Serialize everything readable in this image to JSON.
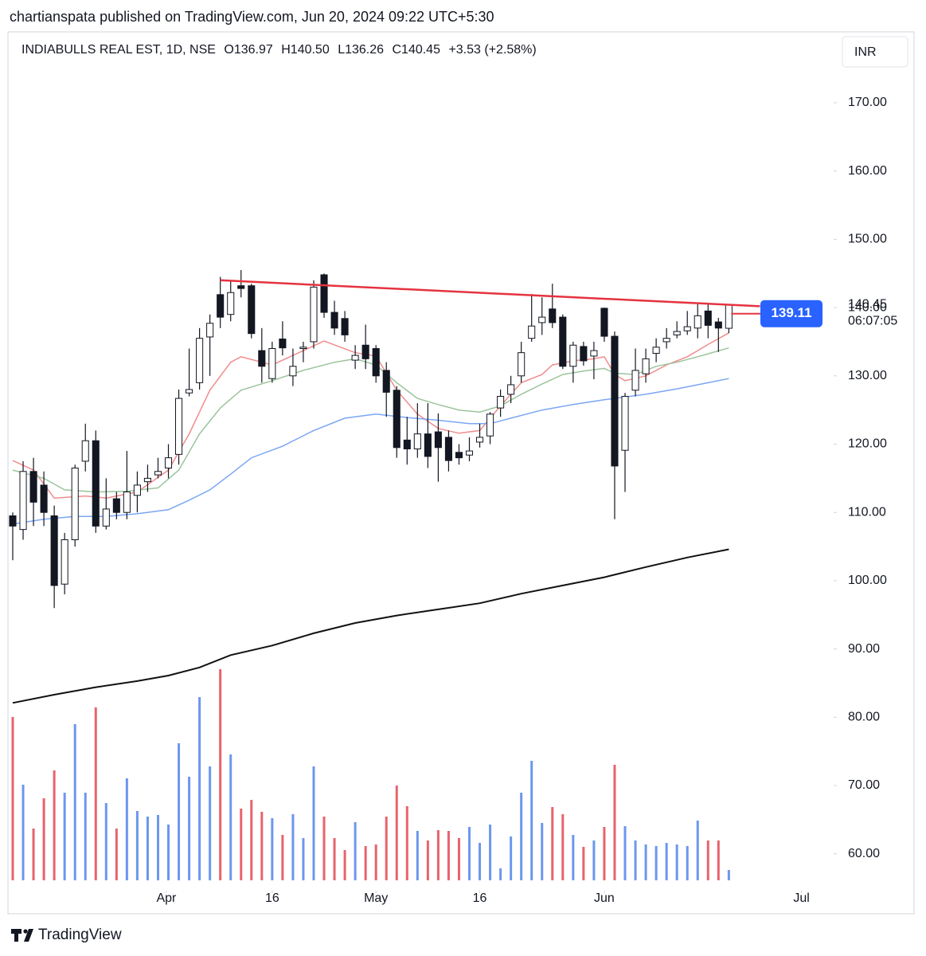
{
  "chart_data": {
    "type": "candlestick",
    "title": "chartianspata published on TradingView.com, Jun 20, 2024 09:22 UTC+5:30",
    "symbol": "INDIABULLS REAL EST, 1D, NSE",
    "ohlc_text": [
      "O136.97",
      "H140.50",
      "L136.26",
      "C140.45",
      "+3.53 (+2.58%)"
    ],
    "currency": "INR",
    "footer": "TradingView",
    "up_color": "#ffffff",
    "down_color": "#131722",
    "wick_color": "#131722",
    "ohlc": [
      [
        109.5,
        110,
        103,
        108
      ],
      [
        107.5,
        117.5,
        106,
        116
      ],
      [
        116,
        118,
        108,
        111.5
      ],
      [
        114,
        116,
        108,
        110
      ],
      [
        109.5,
        111,
        96,
        99.3
      ],
      [
        99.5,
        107,
        98,
        106
      ],
      [
        106,
        117,
        105,
        116.5
      ],
      [
        117.5,
        123,
        116,
        120.5
      ],
      [
        120.5,
        122,
        107,
        108
      ],
      [
        108,
        115,
        107.5,
        110.5
      ],
      [
        112,
        113,
        109,
        110
      ],
      [
        110,
        119,
        109,
        113
      ],
      [
        112.5,
        116,
        110,
        114
      ],
      [
        114.5,
        117,
        113,
        115
      ],
      [
        115.5,
        118,
        115,
        116
      ],
      [
        116.5,
        120,
        115,
        118
      ],
      [
        118.5,
        128,
        117,
        126.7
      ],
      [
        127.5,
        134,
        127,
        128
      ],
      [
        129,
        137,
        128,
        135.5
      ],
      [
        135.7,
        139,
        130,
        137.7
      ],
      [
        141.9,
        144.5,
        137,
        138.6
      ],
      [
        139,
        144,
        138,
        142.2
      ],
      [
        143.2,
        145.5,
        141.5,
        142.8
      ],
      [
        143.2,
        143.5,
        135.5,
        136.2
      ],
      [
        133.7,
        137,
        129,
        131.4
      ],
      [
        129.6,
        135,
        129,
        134
      ],
      [
        135.4,
        138,
        133,
        134.1
      ],
      [
        130,
        134,
        128.5,
        131.4
      ],
      [
        134,
        135,
        132,
        134.2
      ],
      [
        135,
        144,
        134,
        143
      ],
      [
        144.8,
        145,
        138.5,
        139.3
      ],
      [
        139.3,
        141,
        136,
        137
      ],
      [
        138.4,
        139.5,
        135,
        136
      ],
      [
        132.3,
        134.5,
        131,
        133
      ],
      [
        134.5,
        137.5,
        131,
        132.5
      ],
      [
        134,
        134.5,
        129,
        130
      ],
      [
        130.8,
        132,
        124,
        127.6
      ],
      [
        127.9,
        128.5,
        118,
        119.5
      ],
      [
        120.6,
        124,
        117,
        119.3
      ],
      [
        119.3,
        126,
        118,
        121.5
      ],
      [
        121.5,
        126,
        116.5,
        118.2
      ],
      [
        121.8,
        124.5,
        114.5,
        119.5
      ],
      [
        121,
        122,
        116,
        117.6
      ],
      [
        118.8,
        120,
        117,
        118
      ],
      [
        118.4,
        121,
        117.5,
        119
      ],
      [
        120.3,
        123,
        119.5,
        121
      ],
      [
        121.2,
        124.7,
        120,
        124.4
      ],
      [
        125.3,
        128,
        124,
        127
      ],
      [
        127.3,
        130,
        126,
        128.7
      ],
      [
        130,
        135,
        129,
        133.4
      ],
      [
        135.5,
        142,
        135,
        137.3
      ],
      [
        137.8,
        141.5,
        136,
        138.6
      ],
      [
        139.8,
        143.5,
        137,
        137.8
      ],
      [
        138.6,
        139,
        131,
        131.4
      ],
      [
        131.4,
        135,
        129,
        134.5
      ],
      [
        134.3,
        135,
        131.5,
        132.2
      ],
      [
        132.9,
        135,
        129.5,
        133.7
      ],
      [
        139.9,
        140,
        135,
        135.8
      ],
      [
        135.8,
        136.5,
        109,
        116.8
      ],
      [
        119.1,
        127.5,
        113,
        127
      ],
      [
        127.9,
        134,
        127,
        130.8
      ],
      [
        130.3,
        134,
        129,
        132.5
      ],
      [
        133.3,
        135.5,
        132,
        134.2
      ],
      [
        135,
        137,
        134,
        135.5
      ],
      [
        136,
        138,
        135.5,
        136.5
      ],
      [
        136.6,
        139.5,
        136,
        137.2
      ],
      [
        137,
        140.5,
        135.5,
        138.8
      ],
      [
        139.5,
        140.5,
        135.5,
        137.4
      ],
      [
        137.9,
        138.5,
        133.5,
        137
      ],
      [
        136.97,
        140.5,
        136.26,
        140.45
      ]
    ],
    "volume": [
      205,
      120,
      65,
      103,
      138,
      110,
      196,
      110,
      217,
      97,
      65,
      128,
      87,
      80,
      82,
      70,
      172,
      130,
      230,
      143,
      265,
      158,
      90,
      101,
      86,
      78,
      57,
      83,
      53,
      143,
      80,
      53,
      38,
      73,
      43,
      45,
      80,
      119,
      93,
      62,
      50,
      63,
      62,
      53,
      67,
      47,
      70,
      15,
      55,
      110,
      150,
      72,
      92,
      83,
      57,
      42,
      50,
      67,
      145,
      68,
      50,
      45,
      43,
      47,
      45,
      43,
      75,
      50,
      50,
      13
    ],
    "volume_up_color": "#6c97ee",
    "volume_down_color": "#e8636c",
    "lines": [
      {
        "color": "#f08c8c",
        "x": [
          0,
          2,
          4,
          7,
          9,
          12,
          15,
          17,
          19,
          21,
          22,
          25,
          28,
          30,
          33,
          35,
          37,
          39,
          41,
          43,
          45,
          47,
          49,
          51,
          52,
          54,
          56,
          57,
          58,
          59,
          61,
          63,
          65,
          67,
          69
        ],
        "values": [
          117.6,
          116.2,
          112.1,
          112.4,
          112.1,
          113,
          116.2,
          121.5,
          127.9,
          132,
          132.8,
          131.6,
          133.7,
          135.1,
          133.4,
          132.9,
          127.9,
          124.4,
          122.3,
          121.6,
          122,
          125.6,
          129,
          130.2,
          131.6,
          132.2,
          132.5,
          132.8,
          130.2,
          129.3,
          130,
          131.6,
          132.8,
          134.6,
          136.3
        ]
      },
      {
        "color": "#9cc49c",
        "x": [
          0,
          3,
          5,
          8,
          11,
          14,
          16,
          18,
          20,
          22,
          25,
          28,
          31,
          33,
          35,
          37,
          39,
          41,
          43,
          45,
          47,
          49,
          51,
          53,
          55,
          57,
          58,
          60,
          62,
          64,
          66,
          69
        ],
        "values": [
          116.2,
          115,
          113.3,
          113,
          113.1,
          113.6,
          116.2,
          121.5,
          125.3,
          127.9,
          129.3,
          130.8,
          132,
          132.5,
          131.6,
          129,
          126.7,
          125.8,
          125,
          124.7,
          125.6,
          127.3,
          128.8,
          130.2,
          130.7,
          131.1,
          130.4,
          130.2,
          131.4,
          132,
          132.8,
          134.1
        ]
      },
      {
        "color": "#7ba6f4",
        "x": [
          0,
          3,
          6,
          9,
          12,
          15,
          17,
          19,
          21,
          23,
          26,
          29,
          32,
          35,
          38,
          41,
          44,
          46,
          48,
          51,
          54,
          57,
          59,
          61,
          64,
          67,
          69
        ],
        "values": [
          108.3,
          109,
          109.4,
          109.4,
          109.8,
          110.4,
          111.8,
          113.3,
          115.6,
          118,
          119.7,
          122,
          123.8,
          124.4,
          123.9,
          123.5,
          123,
          123,
          123.8,
          125,
          125.8,
          126.5,
          126.9,
          127.3,
          128.1,
          129,
          129.6
        ]
      },
      {
        "color": "#111111",
        "x": [
          0,
          4,
          8,
          12,
          15,
          18,
          21,
          25,
          29,
          33,
          37,
          41,
          45,
          49,
          53,
          57,
          61,
          65,
          69
        ],
        "values": [
          82.1,
          83.3,
          84.4,
          85.3,
          86.1,
          87.3,
          89.1,
          90.5,
          92.3,
          93.8,
          94.9,
          95.8,
          96.7,
          98.1,
          99.3,
          100.5,
          102,
          103.4,
          104.6
        ]
      }
    ],
    "trendline": {
      "color": "#e53340",
      "x": [
        20,
        72
      ],
      "values": [
        144,
        140.2
      ]
    },
    "alert": {
      "value": 139.11,
      "label": "139.11",
      "color": "#2962ff",
      "line_color": "#e53340"
    },
    "last_price": {
      "value": 140.45,
      "label": "140.45"
    },
    "countdown": "06:07:05",
    "xlim": [
      -0.46,
      79.1
    ],
    "xticks": [
      {
        "value": 14.8,
        "label": "Apr"
      },
      {
        "value": 25,
        "label": "16"
      },
      {
        "value": 35,
        "label": "May"
      },
      {
        "value": 45,
        "label": "16"
      },
      {
        "value": 57,
        "label": "Jun"
      },
      {
        "value": 76,
        "label": "Jul"
      }
    ],
    "ylim": [
      54.6,
      179.8
    ],
    "yticks": [
      {
        "value": 60,
        "label": "60.00"
      },
      {
        "value": 70,
        "label": "70.00"
      },
      {
        "value": 80,
        "label": "80.00"
      },
      {
        "value": 90,
        "label": "90.00"
      },
      {
        "value": 100,
        "label": "100.00"
      },
      {
        "value": 110,
        "label": "110.00"
      },
      {
        "value": 120,
        "label": "120.00"
      },
      {
        "value": 130,
        "label": "130.00"
      },
      {
        "value": 140,
        "label": "140.00"
      },
      {
        "value": 150,
        "label": "150.00"
      },
      {
        "value": 160,
        "label": "160.00"
      },
      {
        "value": 170,
        "label": "170.00"
      }
    ]
  }
}
